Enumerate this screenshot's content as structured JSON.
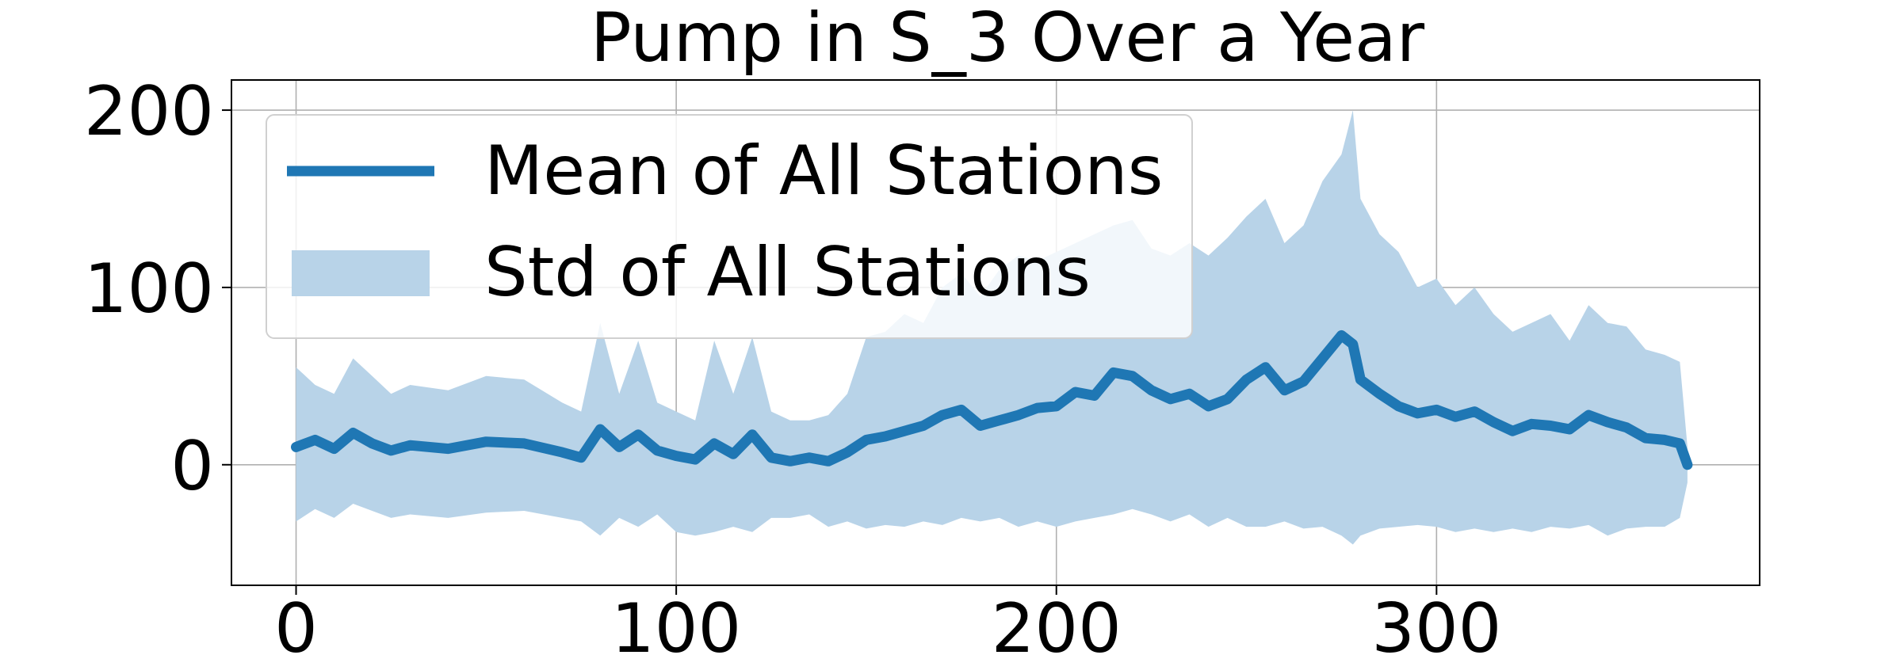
{
  "chart_data": {
    "type": "line",
    "title": "Pump in S_3 Over a Year",
    "xlabel": "",
    "ylabel": "",
    "xlim": [
      -17,
      385
    ],
    "ylim": [
      -68,
      217
    ],
    "xticks": [
      0,
      100,
      200,
      300
    ],
    "yticks": [
      0,
      100,
      200
    ],
    "grid": true,
    "legend_position": "upper-left",
    "colors": {
      "mean": "#1f77b4",
      "std": "#b8d3e8"
    },
    "series": [
      {
        "name": "Mean of All Stations",
        "kind": "line",
        "x": [
          0,
          5,
          10,
          15,
          20,
          25,
          30,
          40,
          50,
          60,
          70,
          75,
          80,
          85,
          90,
          95,
          100,
          105,
          110,
          115,
          120,
          125,
          130,
          135,
          140,
          145,
          150,
          155,
          160,
          165,
          170,
          175,
          180,
          185,
          190,
          195,
          200,
          205,
          210,
          215,
          220,
          225,
          230,
          235,
          240,
          245,
          250,
          255,
          260,
          265,
          270,
          275,
          278,
          280,
          285,
          290,
          295,
          300,
          305,
          310,
          315,
          320,
          325,
          330,
          335,
          340,
          345,
          350,
          355,
          360,
          364,
          366
        ],
        "y": [
          10,
          14,
          9,
          18,
          12,
          8,
          11,
          9,
          13,
          12,
          7,
          4,
          20,
          10,
          17,
          8,
          5,
          3,
          12,
          6,
          17,
          4,
          2,
          4,
          2,
          7,
          14,
          16,
          19,
          22,
          28,
          31,
          22,
          25,
          28,
          32,
          33,
          41,
          39,
          52,
          50,
          42,
          37,
          40,
          33,
          37,
          48,
          55,
          42,
          47,
          60,
          73,
          68,
          48,
          40,
          33,
          29,
          31,
          27,
          30,
          24,
          19,
          23,
          22,
          20,
          28,
          24,
          21,
          15,
          14,
          12,
          0
        ]
      },
      {
        "name": "Std of All Stations",
        "kind": "band",
        "x": [
          0,
          5,
          10,
          15,
          20,
          25,
          30,
          40,
          50,
          60,
          70,
          75,
          80,
          85,
          90,
          95,
          100,
          105,
          110,
          115,
          120,
          125,
          130,
          135,
          140,
          145,
          150,
          155,
          160,
          165,
          170,
          175,
          180,
          185,
          190,
          195,
          200,
          205,
          210,
          215,
          220,
          225,
          230,
          235,
          240,
          245,
          250,
          255,
          260,
          265,
          270,
          275,
          278,
          280,
          285,
          290,
          295,
          300,
          305,
          310,
          315,
          320,
          325,
          330,
          335,
          340,
          345,
          350,
          355,
          360,
          364,
          366
        ],
        "upper": [
          55,
          45,
          40,
          60,
          50,
          40,
          45,
          42,
          50,
          48,
          35,
          30,
          80,
          40,
          70,
          35,
          30,
          25,
          70,
          40,
          72,
          30,
          25,
          25,
          28,
          40,
          72,
          75,
          85,
          80,
          100,
          108,
          95,
          110,
          118,
          115,
          120,
          125,
          130,
          135,
          138,
          122,
          118,
          125,
          118,
          128,
          140,
          150,
          125,
          135,
          160,
          175,
          200,
          150,
          130,
          120,
          100,
          105,
          90,
          100,
          85,
          75,
          80,
          85,
          70,
          90,
          80,
          78,
          65,
          62,
          58,
          10
        ],
        "lower": [
          -32,
          -25,
          -30,
          -22,
          -26,
          -30,
          -28,
          -30,
          -27,
          -26,
          -30,
          -32,
          -40,
          -30,
          -35,
          -28,
          -38,
          -40,
          -38,
          -35,
          -38,
          -30,
          -30,
          -28,
          -35,
          -32,
          -36,
          -34,
          -35,
          -32,
          -34,
          -30,
          -32,
          -30,
          -35,
          -32,
          -35,
          -32,
          -30,
          -28,
          -25,
          -28,
          -32,
          -28,
          -35,
          -30,
          -35,
          -35,
          -32,
          -36,
          -35,
          -40,
          -45,
          -40,
          -36,
          -35,
          -34,
          -35,
          -38,
          -36,
          -38,
          -36,
          -38,
          -35,
          -36,
          -34,
          -40,
          -36,
          -35,
          -35,
          -30,
          -10
        ]
      }
    ]
  }
}
